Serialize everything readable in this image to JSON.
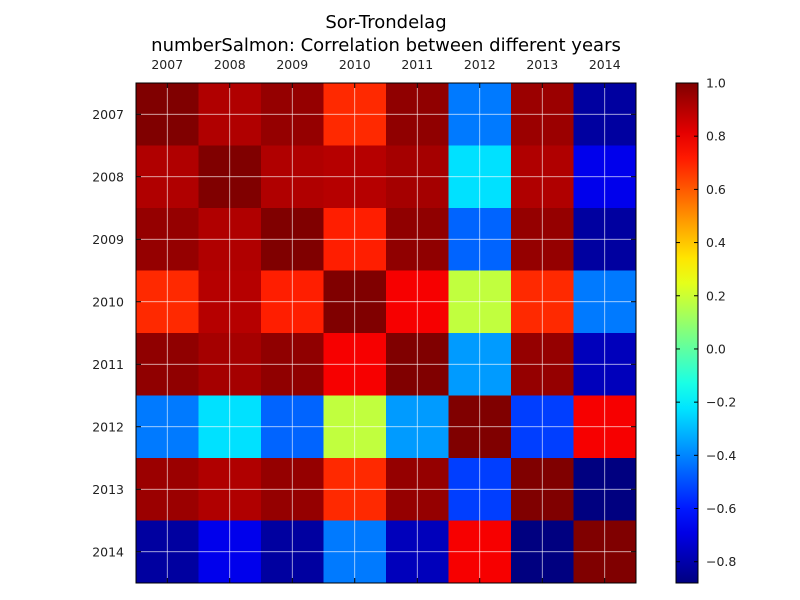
{
  "chart_data": {
    "type": "heatmap",
    "title": "Sor-Trondelag",
    "subtitle": "numberSalmon: Correlation between different years",
    "x_categories": [
      "2007",
      "2008",
      "2009",
      "2010",
      "2011",
      "2012",
      "2013",
      "2014"
    ],
    "y_categories": [
      "2007",
      "2008",
      "2009",
      "2010",
      "2011",
      "2012",
      "2013",
      "2014"
    ],
    "values": [
      [
        1.0,
        0.91,
        0.96,
        0.69,
        0.97,
        -0.42,
        0.95,
        -0.82
      ],
      [
        0.91,
        1.0,
        0.91,
        0.9,
        0.93,
        -0.23,
        0.91,
        -0.68
      ],
      [
        0.96,
        0.91,
        1.0,
        0.71,
        0.97,
        -0.46,
        0.96,
        -0.82
      ],
      [
        0.69,
        0.9,
        0.71,
        1.0,
        0.78,
        0.18,
        0.69,
        -0.42
      ],
      [
        0.97,
        0.93,
        0.97,
        0.78,
        1.0,
        -0.36,
        0.96,
        -0.77
      ],
      [
        -0.42,
        -0.23,
        -0.46,
        0.18,
        -0.36,
        1.0,
        -0.53,
        0.78
      ],
      [
        0.95,
        0.91,
        0.96,
        0.69,
        0.96,
        -0.53,
        1.0,
        -0.88
      ],
      [
        -0.82,
        -0.68,
        -0.82,
        -0.42,
        -0.77,
        0.78,
        -0.88,
        1.0
      ]
    ],
    "colorbar": {
      "range": [
        -0.88,
        1.0
      ],
      "ticks": [
        -0.8,
        -0.6,
        -0.4,
        -0.2,
        0.0,
        0.2,
        0.4,
        0.6,
        0.8,
        1.0
      ],
      "tick_labels": [
        "−0.8",
        "−0.6",
        "−0.4",
        "−0.2",
        "0.0",
        "0.2",
        "0.4",
        "0.6",
        "0.8",
        "1.0"
      ],
      "colormap": "jet"
    },
    "grid": true,
    "x_axis_position": "top"
  }
}
